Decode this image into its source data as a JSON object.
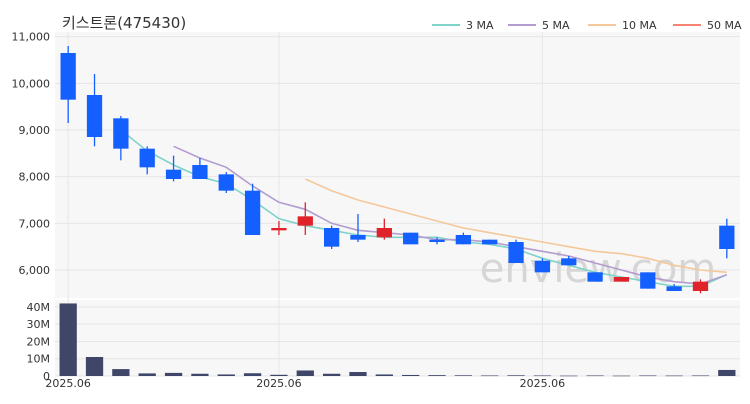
{
  "title": "키스트론(475430)",
  "watermark": "enview.com",
  "colors": {
    "up": "#e0232b",
    "down": "#1460ff",
    "volume": "#3f4668",
    "grid": "#e6e6e6",
    "panel_bg": "#f7f7f7",
    "text": "#333333"
  },
  "chart_data": {
    "type": "candlestick",
    "price_axis": {
      "ylim": [
        5400,
        11100
      ],
      "ticks": [
        6000,
        7000,
        8000,
        9000,
        10000,
        11000
      ],
      "tick_labels": [
        "6,000",
        "7,000",
        "8,000",
        "9,000",
        "10,000",
        "11,000"
      ]
    },
    "volume_axis": {
      "ylim": [
        0,
        44000000
      ],
      "ticks": [
        0,
        10000000,
        20000000,
        30000000,
        40000000
      ],
      "tick_labels": [
        "0",
        "10M",
        "20M",
        "30M",
        "40M"
      ]
    },
    "x_tick_labels": [
      {
        "index": 0,
        "label": "2025.06"
      },
      {
        "index": 8,
        "label": "2025.06"
      },
      {
        "index": 18,
        "label": "2025.06"
      }
    ],
    "legend": [
      {
        "name": "3 MA",
        "color": "#7fd3c9"
      },
      {
        "name": "5 MA",
        "color": "#b39ccf"
      },
      {
        "name": "10 MA",
        "color": "#f5c89b"
      },
      {
        "name": "50 MA",
        "color": "#f4846f"
      }
    ],
    "candles": [
      {
        "open": 10650,
        "high": 10800,
        "low": 9150,
        "close": 9650,
        "volume": 42000000
      },
      {
        "open": 9750,
        "high": 10200,
        "low": 8650,
        "close": 8850,
        "volume": 11000000
      },
      {
        "open": 9250,
        "high": 9300,
        "low": 8350,
        "close": 8600,
        "volume": 4000000
      },
      {
        "open": 8600,
        "high": 8650,
        "low": 8050,
        "close": 8200,
        "volume": 1500000
      },
      {
        "open": 8150,
        "high": 8450,
        "low": 7900,
        "close": 7950,
        "volume": 1800000
      },
      {
        "open": 8250,
        "high": 8400,
        "low": 7950,
        "close": 7950,
        "volume": 1300000
      },
      {
        "open": 8050,
        "high": 8100,
        "low": 7650,
        "close": 7700,
        "volume": 900000
      },
      {
        "open": 7700,
        "high": 7850,
        "low": 6750,
        "close": 6750,
        "volume": 1600000
      },
      {
        "open": 6850,
        "high": 7050,
        "low": 6750,
        "close": 6900,
        "volume": 700000
      },
      {
        "open": 6950,
        "high": 7450,
        "low": 6750,
        "close": 7150,
        "volume": 3200000
      },
      {
        "open": 6900,
        "high": 6950,
        "low": 6450,
        "close": 6500,
        "volume": 1300000
      },
      {
        "open": 6750,
        "high": 7200,
        "low": 6600,
        "close": 6650,
        "volume": 2300000
      },
      {
        "open": 6700,
        "high": 7100,
        "low": 6650,
        "close": 6900,
        "volume": 900000
      },
      {
        "open": 6800,
        "high": 6800,
        "low": 6550,
        "close": 6550,
        "volume": 600000
      },
      {
        "open": 6650,
        "high": 6700,
        "low": 6550,
        "close": 6600,
        "volume": 500000
      },
      {
        "open": 6750,
        "high": 6800,
        "low": 6550,
        "close": 6550,
        "volume": 400000
      },
      {
        "open": 6650,
        "high": 6650,
        "low": 6550,
        "close": 6550,
        "volume": 300000
      },
      {
        "open": 6600,
        "high": 6650,
        "low": 6150,
        "close": 6150,
        "volume": 400000
      },
      {
        "open": 6200,
        "high": 6250,
        "low": 5950,
        "close": 5950,
        "volume": 300000
      },
      {
        "open": 6250,
        "high": 6300,
        "low": 6100,
        "close": 6100,
        "volume": 200000
      },
      {
        "open": 5950,
        "high": 5950,
        "low": 5750,
        "close": 5750,
        "volume": 300000
      },
      {
        "open": 5750,
        "high": 5850,
        "low": 5750,
        "close": 5850,
        "volume": 200000
      },
      {
        "open": 5950,
        "high": 5950,
        "low": 5600,
        "close": 5600,
        "volume": 300000
      },
      {
        "open": 5650,
        "high": 5700,
        "low": 5550,
        "close": 5550,
        "volume": 250000
      },
      {
        "open": 5550,
        "high": 5800,
        "low": 5500,
        "close": 5750,
        "volume": 300000
      },
      {
        "open": 6950,
        "high": 7100,
        "low": 6250,
        "close": 6450,
        "volume": 3500000
      }
    ],
    "ma3": [
      null,
      null,
      9000,
      8550,
      8250,
      8000,
      7850,
      7500,
      7100,
      6950,
      6850,
      6750,
      6700,
      6700,
      6700,
      6600,
      6550,
      6450,
      6250,
      6100,
      5950,
      5850,
      5750,
      5650,
      5650,
      5900
    ],
    "ma5": [
      null,
      null,
      null,
      null,
      8650,
      8400,
      8200,
      7800,
      7450,
      7300,
      7000,
      6850,
      6800,
      6750,
      6650,
      6650,
      6600,
      6500,
      6400,
      6300,
      6150,
      6000,
      5850,
      5750,
      5700,
      5900
    ],
    "ma10": [
      null,
      null,
      null,
      null,
      null,
      null,
      null,
      null,
      null,
      7950,
      7700,
      7500,
      7350,
      7200,
      7050,
      6900,
      6800,
      6700,
      6600,
      6500,
      6400,
      6350,
      6250,
      6100,
      6000,
      5950
    ]
  }
}
